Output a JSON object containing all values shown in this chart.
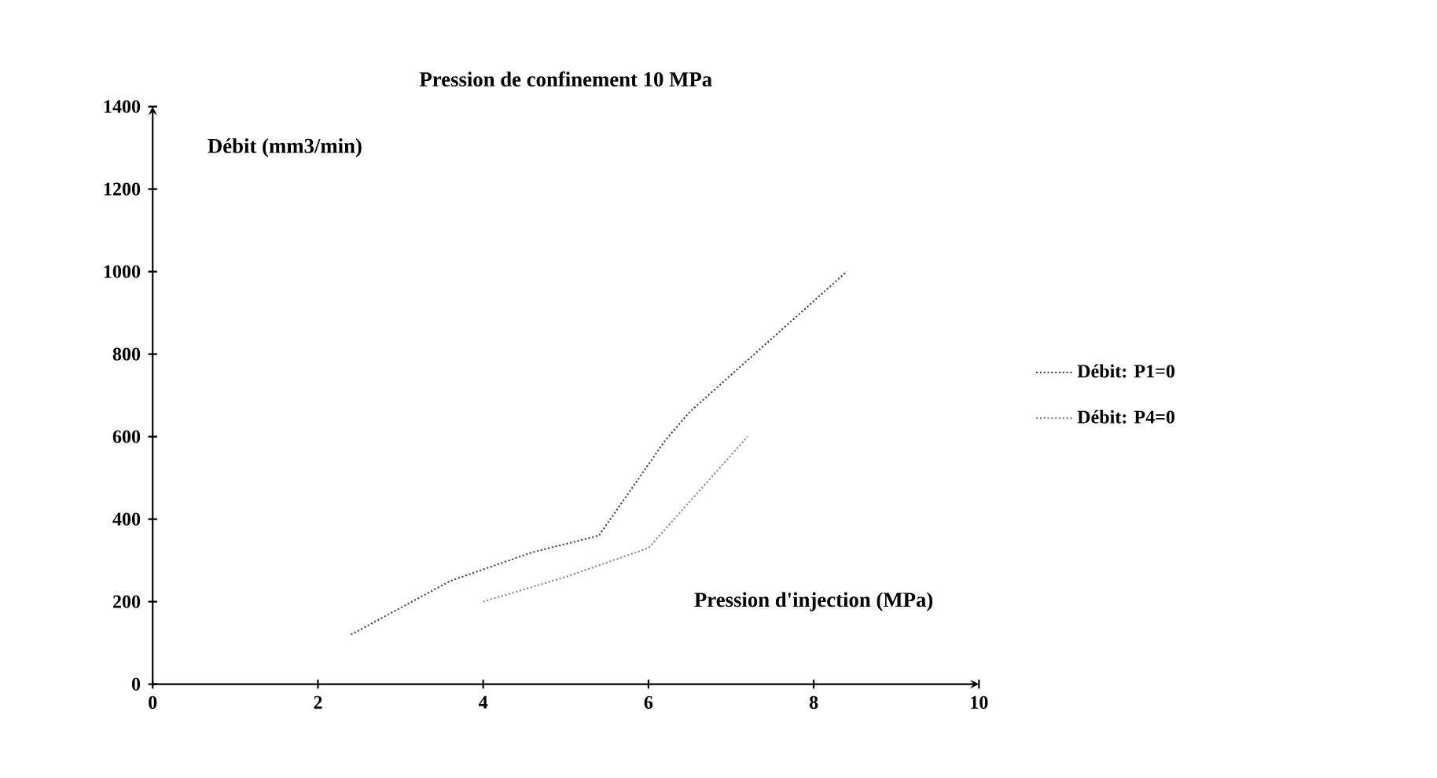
{
  "chart_data": {
    "type": "line",
    "title": "Pression de confinement 10 MPa",
    "xlabel": "Pression d'injection (MPa)",
    "ylabel": "Débit (mm3/min)",
    "xlim": [
      0,
      10
    ],
    "ylim": [
      0,
      1400
    ],
    "xticks": [
      0,
      2,
      4,
      6,
      8,
      10
    ],
    "yticks": [
      0,
      200,
      400,
      600,
      800,
      1000,
      1200,
      1400
    ],
    "grid": false,
    "legend": "right",
    "line_style": "dotted",
    "series": [
      {
        "name": "Débit: P1=0",
        "color": "#444444",
        "x": [
          2.4,
          3.6,
          4.6,
          5.4,
          6.2,
          6.5,
          8.4
        ],
        "values": [
          120,
          250,
          320,
          360,
          590,
          660,
          1000
        ]
      },
      {
        "name": "Débit: P4=0",
        "color": "#888888",
        "x": [
          4.0,
          5.0,
          6.0,
          7.2
        ],
        "values": [
          200,
          260,
          330,
          600
        ]
      }
    ]
  }
}
